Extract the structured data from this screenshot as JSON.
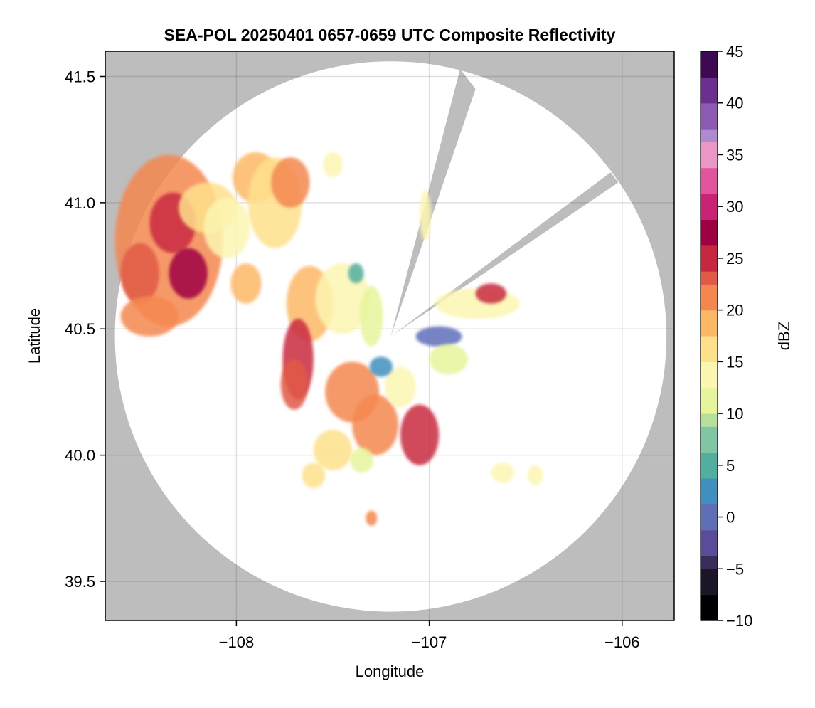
{
  "chart_data": {
    "type": "heatmap",
    "title": "SEA-POL 20250401 0657-0659 UTC Composite Reflectivity",
    "xlabel": "Longitude",
    "ylabel": "Latitude",
    "xlim": [
      -108.68,
      -105.73
    ],
    "ylim": [
      39.345,
      41.6
    ],
    "xticks": [
      -108,
      -107,
      -106
    ],
    "xtick_labels": [
      "−108",
      "−107",
      "−106"
    ],
    "yticks": [
      39.5,
      40.0,
      40.5,
      41.0,
      41.5
    ],
    "ytick_labels": [
      "39.5",
      "40.0",
      "40.5",
      "41.0",
      "41.5"
    ],
    "grid": true,
    "background_color": "#bdbdbd",
    "radar": {
      "center_lon": -107.2,
      "center_lat": 40.47,
      "range_lon": 1.43,
      "range_lat": 1.09,
      "blocked_sectors": [
        {
          "from_lon": -106.84,
          "from_lat": 41.53,
          "to_lon": -106.76,
          "to_lat": 41.45
        },
        {
          "from_lon": -106.06,
          "from_lat": 41.12,
          "to_lon": -106.02,
          "to_lat": 41.08
        }
      ]
    },
    "colorbar": {
      "label": "dBZ",
      "min": -10,
      "max": 45,
      "step": 1.25,
      "ticks": [
        -10,
        -5,
        0,
        5,
        10,
        15,
        20,
        25,
        30,
        35,
        40,
        45
      ],
      "tick_labels": [
        "−10",
        "−5",
        "0",
        "5",
        "10",
        "15",
        "20",
        "25",
        "30",
        "35",
        "40",
        "45"
      ],
      "colormap": [
        "#000004",
        "#1c1427",
        "#3b2d5a",
        "#5b4c9a",
        "#5e6fb8",
        "#3f8fc0",
        "#52ae9f",
        "#7fc6a4",
        "#b5df9a",
        "#e6f49a",
        "#fbf6b0",
        "#fee08b",
        "#fdb866",
        "#f4874f",
        "#e05a46",
        "#c8283f",
        "#9e0142",
        "#c82374",
        "#e0559b",
        "#ea97c6",
        "#b08ad0",
        "#8c5ab2",
        "#6a2f8f",
        "#3d0a52"
      ]
    },
    "echo_cells": [
      {
        "lon": -108.35,
        "lat": 40.85,
        "rlon": 0.28,
        "rlat": 0.34,
        "dbz": 22
      },
      {
        "lon": -108.33,
        "lat": 40.92,
        "rlon": 0.12,
        "rlat": 0.12,
        "dbz": 26
      },
      {
        "lon": -108.25,
        "lat": 40.72,
        "rlon": 0.1,
        "rlat": 0.1,
        "dbz": 27
      },
      {
        "lon": -108.5,
        "lat": 40.72,
        "rlon": 0.1,
        "rlat": 0.12,
        "dbz": 24
      },
      {
        "lon": -108.45,
        "lat": 40.55,
        "rlon": 0.15,
        "rlat": 0.08,
        "dbz": 22
      },
      {
        "lon": -108.15,
        "lat": 40.98,
        "rlon": 0.15,
        "rlat": 0.1,
        "dbz": 17
      },
      {
        "lon": -108.05,
        "lat": 40.9,
        "rlon": 0.12,
        "rlat": 0.12,
        "dbz": 15
      },
      {
        "lon": -107.9,
        "lat": 41.1,
        "rlon": 0.12,
        "rlat": 0.1,
        "dbz": 19
      },
      {
        "lon": -107.8,
        "lat": 41.0,
        "rlon": 0.14,
        "rlat": 0.18,
        "dbz": 17
      },
      {
        "lon": -107.72,
        "lat": 41.08,
        "rlon": 0.1,
        "rlat": 0.1,
        "dbz": 22
      },
      {
        "lon": -107.95,
        "lat": 40.68,
        "rlon": 0.08,
        "rlat": 0.08,
        "dbz": 18
      },
      {
        "lon": -107.62,
        "lat": 40.6,
        "rlon": 0.12,
        "rlat": 0.15,
        "dbz": 18
      },
      {
        "lon": -107.68,
        "lat": 40.38,
        "rlon": 0.08,
        "rlat": 0.16,
        "dbz": 25
      },
      {
        "lon": -107.7,
        "lat": 40.28,
        "rlon": 0.07,
        "rlat": 0.1,
        "dbz": 24
      },
      {
        "lon": -107.45,
        "lat": 40.62,
        "rlon": 0.14,
        "rlat": 0.14,
        "dbz": 14
      },
      {
        "lon": -107.3,
        "lat": 40.55,
        "rlon": 0.06,
        "rlat": 0.12,
        "dbz": 12
      },
      {
        "lon": -107.4,
        "lat": 40.25,
        "rlon": 0.14,
        "rlat": 0.12,
        "dbz": 21
      },
      {
        "lon": -107.28,
        "lat": 40.12,
        "rlon": 0.12,
        "rlat": 0.12,
        "dbz": 22
      },
      {
        "lon": -107.05,
        "lat": 40.08,
        "rlon": 0.1,
        "rlat": 0.12,
        "dbz": 25
      },
      {
        "lon": -107.15,
        "lat": 40.27,
        "rlon": 0.08,
        "rlat": 0.08,
        "dbz": 14
      },
      {
        "lon": -107.25,
        "lat": 40.35,
        "rlon": 0.06,
        "rlat": 0.04,
        "dbz": 2
      },
      {
        "lon": -107.5,
        "lat": 40.02,
        "rlon": 0.1,
        "rlat": 0.08,
        "dbz": 17
      },
      {
        "lon": -107.6,
        "lat": 39.92,
        "rlon": 0.06,
        "rlat": 0.05,
        "dbz": 16
      },
      {
        "lon": -107.35,
        "lat": 39.98,
        "rlon": 0.06,
        "rlat": 0.05,
        "dbz": 12
      },
      {
        "lon": -106.75,
        "lat": 40.6,
        "rlon": 0.22,
        "rlat": 0.06,
        "dbz": 14
      },
      {
        "lon": -106.68,
        "lat": 40.64,
        "rlon": 0.08,
        "rlat": 0.04,
        "dbz": 25
      },
      {
        "lon": -106.95,
        "lat": 40.47,
        "rlon": 0.12,
        "rlat": 0.04,
        "dbz": 1
      },
      {
        "lon": -106.9,
        "lat": 40.38,
        "rlon": 0.1,
        "rlat": 0.06,
        "dbz": 11
      },
      {
        "lon": -107.38,
        "lat": 40.72,
        "rlon": 0.04,
        "rlat": 0.04,
        "dbz": 6
      },
      {
        "lon": -106.62,
        "lat": 39.93,
        "rlon": 0.06,
        "rlat": 0.04,
        "dbz": 15
      },
      {
        "lon": -106.45,
        "lat": 39.92,
        "rlon": 0.04,
        "rlat": 0.04,
        "dbz": 14
      },
      {
        "lon": -107.3,
        "lat": 39.75,
        "rlon": 0.03,
        "rlat": 0.03,
        "dbz": 20
      },
      {
        "lon": -107.5,
        "lat": 41.15,
        "rlon": 0.05,
        "rlat": 0.05,
        "dbz": 15
      },
      {
        "lon": -107.02,
        "lat": 40.95,
        "rlon": 0.03,
        "rlat": 0.1,
        "dbz": 15
      }
    ]
  }
}
